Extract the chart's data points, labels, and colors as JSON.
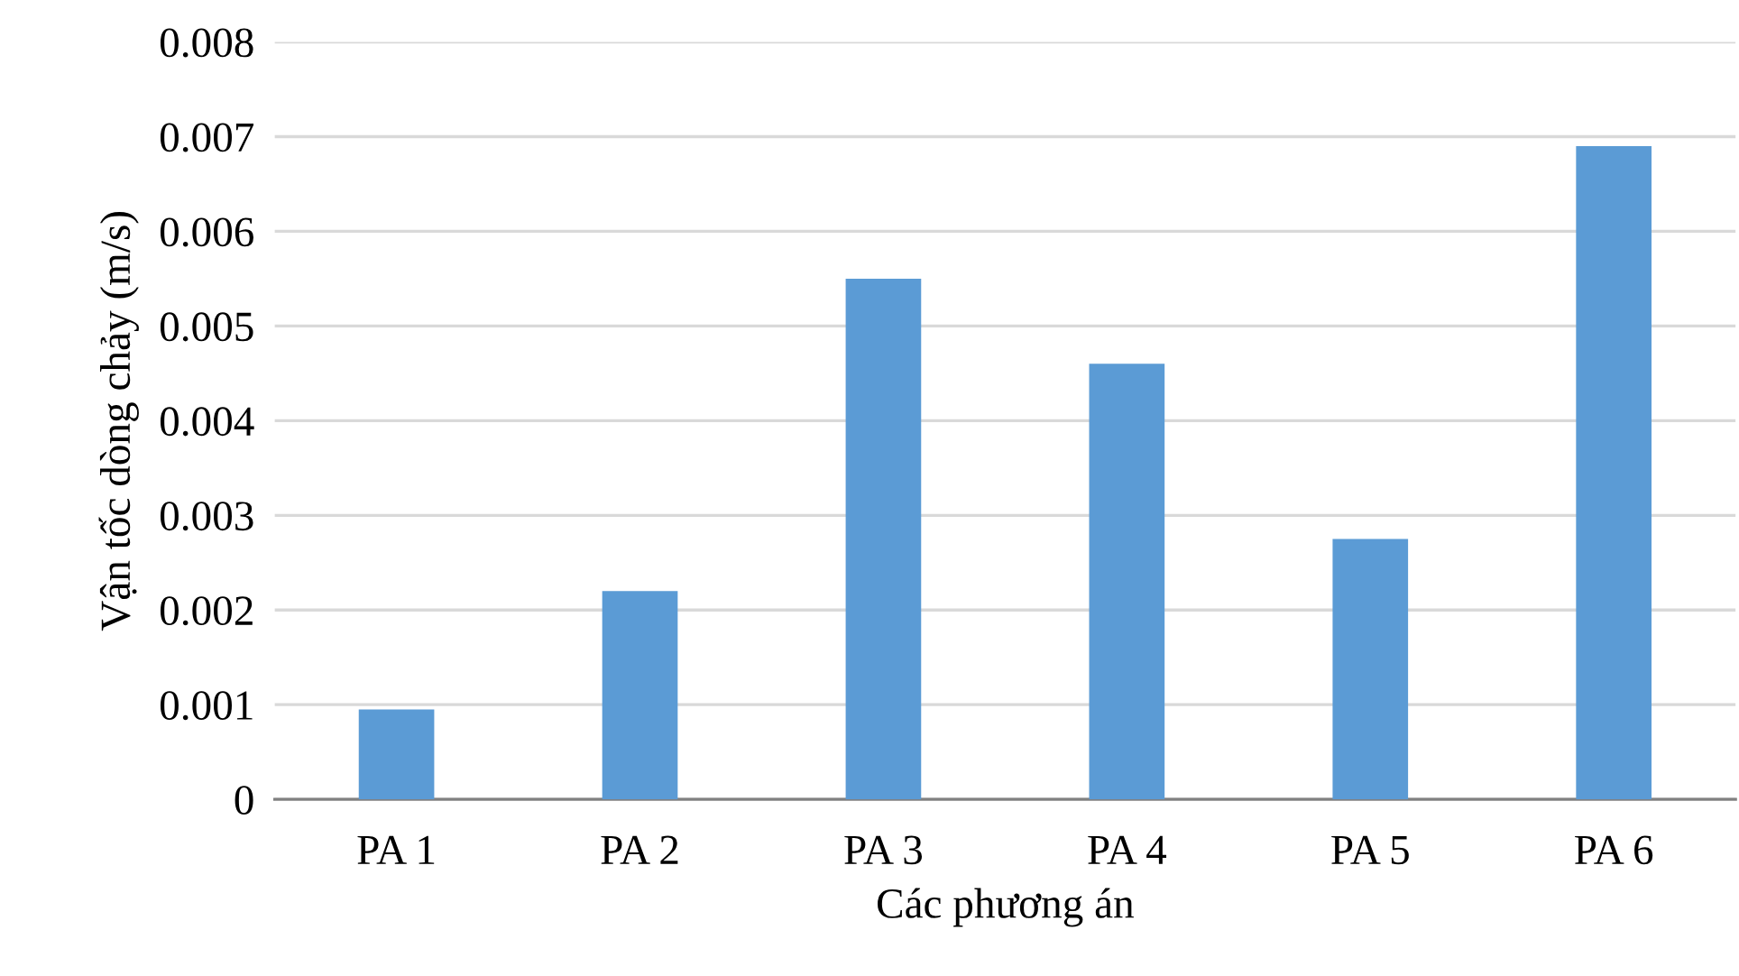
{
  "chart_data": {
    "type": "bar",
    "xlabel": "Các phương án",
    "ylabel": "Vận tốc dòng chảy (m/s)",
    "categories": [
      "PA 1",
      "PA 2",
      "PA 3",
      "PA 4",
      "PA 5",
      "PA 6"
    ],
    "values": [
      0.00095,
      0.0022,
      0.0055,
      0.0046,
      0.00275,
      0.0069
    ],
    "color": "#5b9bd5",
    "ylim": [
      0,
      0.008
    ],
    "yticks": [
      0,
      0.001,
      0.002,
      0.003,
      0.004,
      0.005,
      0.006,
      0.007,
      0.008
    ],
    "grid": "y"
  }
}
